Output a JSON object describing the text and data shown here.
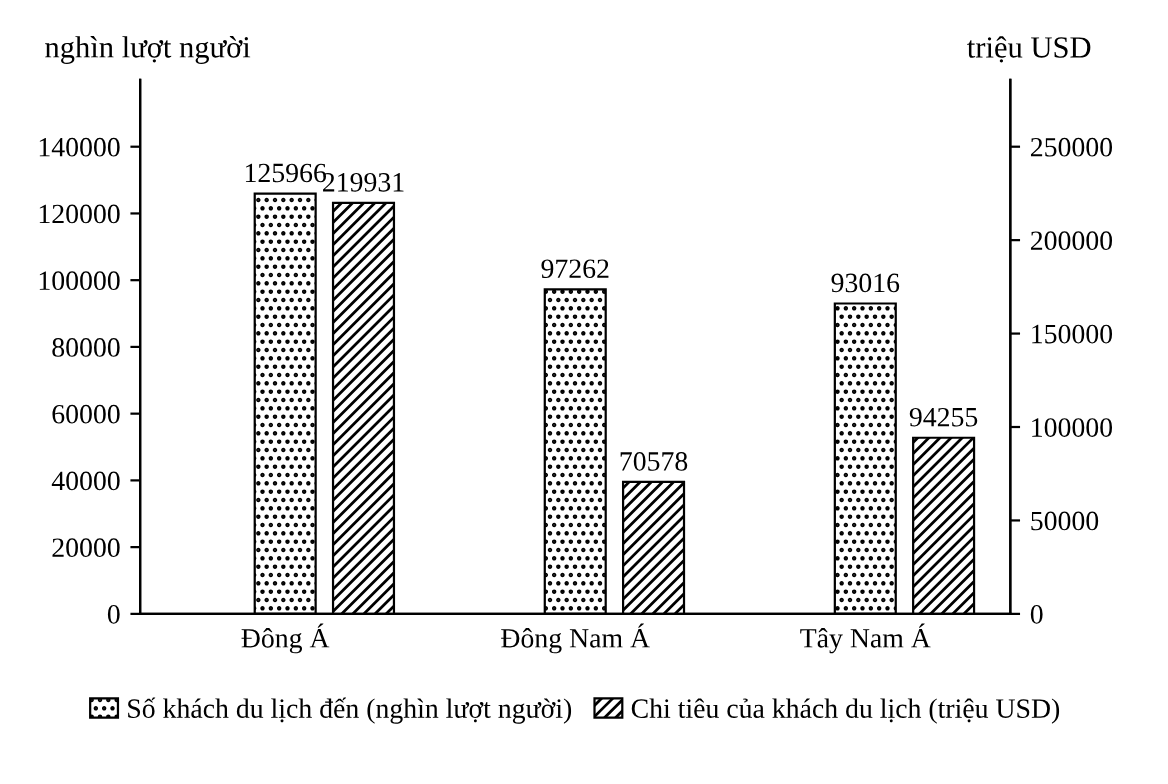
{
  "chart_data": {
    "type": "bar",
    "ylabel": "nghìn lượt người",
    "y2label": "triệu USD",
    "categories": [
      "Đông Á",
      "Đông Nam Á",
      "Tây Nam Á"
    ],
    "series": [
      {
        "name": "Số khách du lịch đến (nghìn lượt người)",
        "color": "#000000",
        "values": [
          125966,
          97262,
          93016
        ]
      },
      {
        "name": "Chi tiêu của khách du lịch (triệu USD)",
        "color": "#000000",
        "values": [
          219931,
          70578,
          94255
        ],
        "axis": "y2"
      }
    ],
    "ylim": [
      0,
      160000
    ],
    "yticks": [
      0,
      20000,
      40000,
      60000,
      80000,
      100000,
      120000,
      140000
    ],
    "y2lim": [
      0,
      285714
    ],
    "y2ticks": [
      0,
      50000,
      100000,
      150000,
      200000,
      250000
    ],
    "data_labels": true,
    "grid": false,
    "legend": "bottom"
  }
}
